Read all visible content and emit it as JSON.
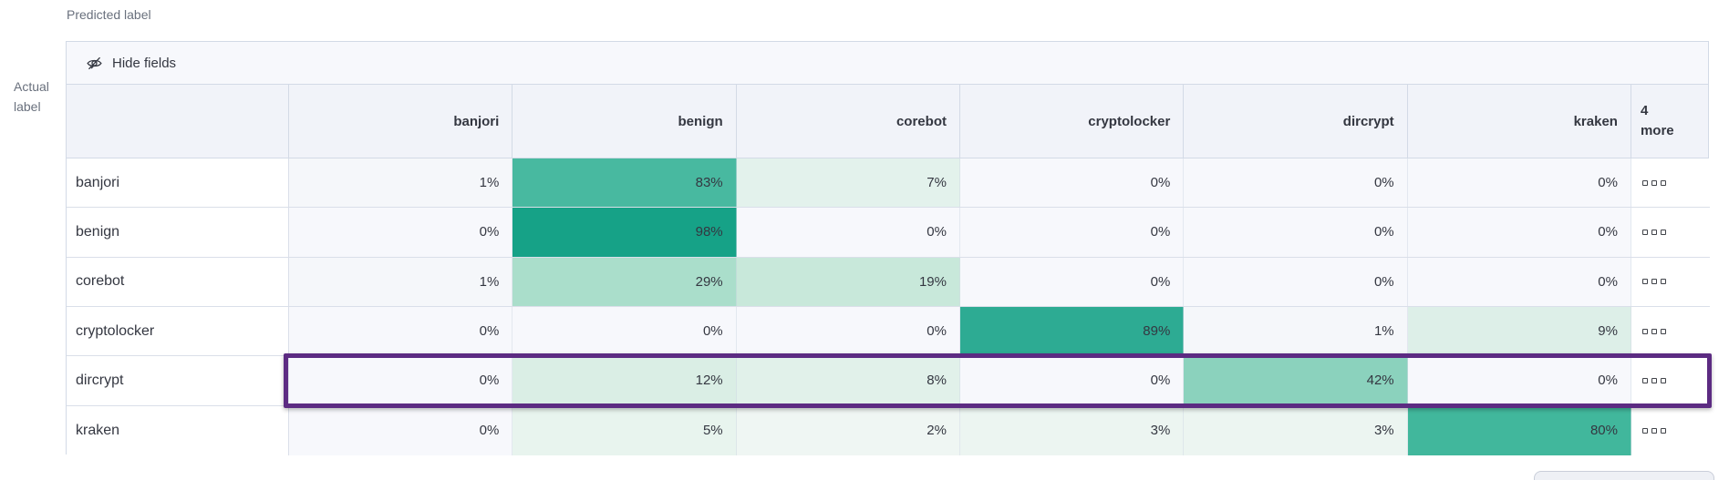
{
  "axis": {
    "predicted": "Predicted label",
    "actual_lines": [
      "Actual",
      "label"
    ]
  },
  "toolbar": {
    "hide_fields_label": "Hide fields"
  },
  "chart_data": {
    "type": "heatmap",
    "x_label": "Predicted label",
    "y_label": "Actual label",
    "columns": [
      "banjori",
      "benign",
      "corebot",
      "cryptolocker",
      "dircrypt",
      "kraken"
    ],
    "more_columns_header": [
      "4",
      "more"
    ],
    "rows": [
      "banjori",
      "benign",
      "corebot",
      "cryptolocker",
      "dircrypt",
      "kraken"
    ],
    "unit": "%",
    "values_percent": [
      [
        1,
        83,
        7,
        0,
        0,
        0
      ],
      [
        0,
        98,
        0,
        0,
        0,
        0
      ],
      [
        1,
        29,
        19,
        0,
        0,
        0
      ],
      [
        0,
        0,
        0,
        89,
        1,
        9
      ],
      [
        0,
        12,
        8,
        0,
        42,
        0
      ],
      [
        0,
        5,
        2,
        3,
        3,
        80
      ]
    ],
    "highlighted_row": "dircrypt",
    "highlight_color": "#5c2b82",
    "heat_scale": {
      "low": "#f7f8fc",
      "high": "#16a287"
    },
    "cell_colors": {
      "0": "#f7f8fc",
      "1": "#f5f7fa",
      "2": "#eff6f3",
      "3": "#ecf5f1",
      "5": "#e8f4ee",
      "7": "#e3f2ec",
      "8": "#e1f1ea",
      "9": "#ddefe8",
      "12": "#daeee5",
      "19": "#c8e8da",
      "29": "#aadecb",
      "42": "#8bd2bd",
      "80": "#41b79c",
      "83": "#48b9a0",
      "89": "#2dab93",
      "98": "#16a287"
    }
  }
}
